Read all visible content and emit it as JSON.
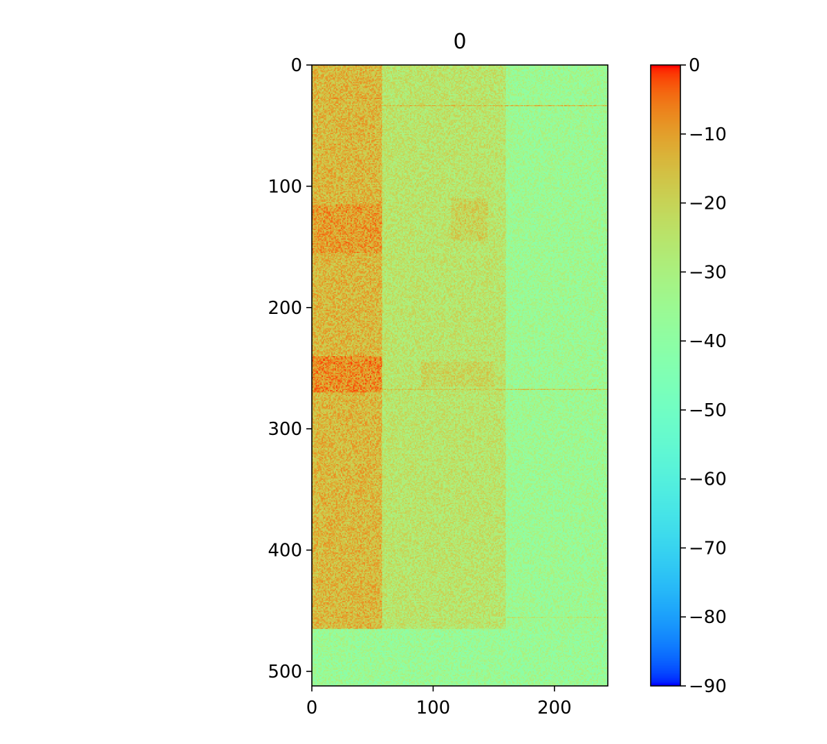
{
  "chart_data": {
    "type": "heatmap",
    "title": "0",
    "xlabel": "",
    "ylabel": "",
    "colormap": "rainbow",
    "data_shape": [
      512,
      244
    ],
    "xlim": [
      0,
      244
    ],
    "ylim": [
      512,
      0
    ],
    "x_ticks": [
      0,
      100,
      200
    ],
    "y_ticks": [
      0,
      100,
      200,
      300,
      400,
      500
    ],
    "colorbar": {
      "range": [
        -90,
        0
      ],
      "ticks": [
        0,
        -10,
        -20,
        -30,
        -40,
        -50,
        -60,
        -70,
        -80,
        -90
      ],
      "tick_labels": [
        "0",
        "−10",
        "−20",
        "−30",
        "−40",
        "−50",
        "−60",
        "−70",
        "−80",
        "−90"
      ]
    },
    "regions": [
      {
        "x": [
          0,
          58
        ],
        "y": [
          0,
          465
        ],
        "level": -14
      },
      {
        "x": [
          58,
          160
        ],
        "y": [
          0,
          470
        ],
        "level": -25
      },
      {
        "x": [
          160,
          244
        ],
        "y": [
          0,
          512
        ],
        "level": -35
      },
      {
        "x": [
          0,
          244
        ],
        "y": [
          465,
          512
        ],
        "level": -36
      }
    ],
    "highlights": [
      {
        "x": [
          0,
          58
        ],
        "y": [
          115,
          155
        ],
        "level": -10
      },
      {
        "x": [
          0,
          58
        ],
        "y": [
          240,
          270
        ],
        "level": -8
      },
      {
        "x": [
          115,
          145
        ],
        "y": [
          110,
          145
        ],
        "level": -20
      },
      {
        "x": [
          90,
          150
        ],
        "y": [
          245,
          265
        ],
        "level": -21
      }
    ],
    "streaks": [
      {
        "y": 27,
        "x": [
          0,
          58
        ],
        "level": -10
      },
      {
        "y": 33,
        "x": [
          58,
          244
        ],
        "level": -15
      },
      {
        "y": 267,
        "x": [
          58,
          244
        ],
        "level": -18
      },
      {
        "y": 455,
        "x": [
          58,
          244
        ],
        "level": -27
      }
    ],
    "noise_amplitude": 7
  }
}
